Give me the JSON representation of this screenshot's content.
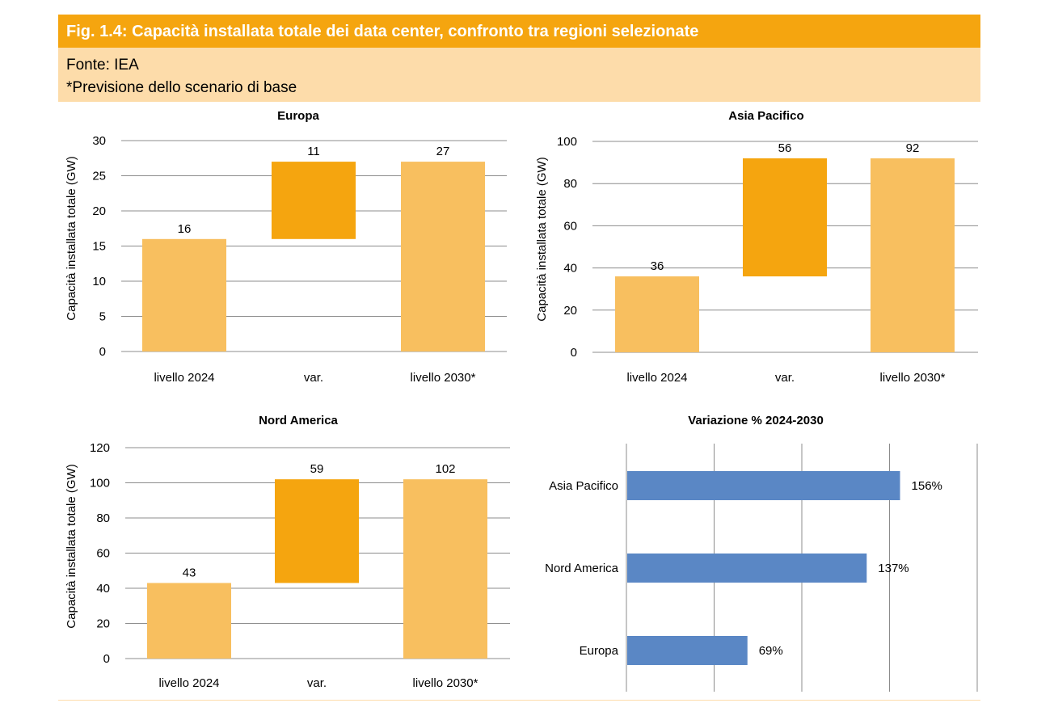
{
  "header": {
    "title": "Fig. 1.4: Capacità installata totale dei data center, confronto tra regioni selezionate",
    "source": "Fonte: IEA",
    "note": "*Previsione dello scenario di base"
  },
  "colors": {
    "banner": "#f5a50f",
    "subheader": "#fddcaa",
    "level_bar": "#f8bf5f",
    "variation_bar": "#f5a50f",
    "hbar": "#5a87c5",
    "grid": "#8c8c8c"
  },
  "chart_data": [
    {
      "type": "bar",
      "subtype": "waterfall",
      "title": "Europa",
      "ylabel": "Capacità installata totale (GW)",
      "categories": [
        "livello 2024",
        "var.",
        "livello 2030*"
      ],
      "values": [
        16,
        11,
        27
      ],
      "value_labels": [
        "16",
        "11",
        "27"
      ],
      "ylim": [
        0,
        30
      ],
      "yticks": [
        0,
        5,
        10,
        15,
        20,
        25,
        30
      ],
      "ytick_labels": [
        "0",
        "5",
        "10",
        "15",
        "20",
        "25",
        "30"
      ]
    },
    {
      "type": "bar",
      "subtype": "waterfall",
      "title": "Asia Pacifico",
      "ylabel": "Capacità installata totale (GW)",
      "categories": [
        "livello 2024",
        "var.",
        "livello 2030*"
      ],
      "values": [
        36,
        56,
        92
      ],
      "value_labels": [
        "36",
        "56",
        "92"
      ],
      "ylim": [
        0,
        100
      ],
      "yticks": [
        0,
        20,
        40,
        60,
        80,
        100
      ],
      "ytick_labels": [
        "0",
        "20",
        "40",
        "60",
        "80",
        "100"
      ]
    },
    {
      "type": "bar",
      "subtype": "waterfall",
      "title": "Nord America",
      "ylabel": "Capacità installata totale (GW)",
      "categories": [
        "livello 2024",
        "var.",
        "livello 2030*"
      ],
      "values": [
        43,
        59,
        102
      ],
      "value_labels": [
        "43",
        "59",
        "102"
      ],
      "ylim": [
        0,
        120
      ],
      "yticks": [
        0,
        20,
        40,
        60,
        80,
        100,
        120
      ],
      "ytick_labels": [
        "0",
        "20",
        "40",
        "60",
        "80",
        "100",
        "120"
      ]
    },
    {
      "type": "bar",
      "orientation": "horizontal",
      "title": "Variazione % 2024-2030",
      "categories": [
        "Asia Pacifico",
        "Nord America",
        "Europa"
      ],
      "values": [
        156,
        137,
        69
      ],
      "value_labels": [
        "156%",
        "137%",
        "69%"
      ],
      "xlim": [
        0,
        200
      ],
      "grid": true
    }
  ]
}
